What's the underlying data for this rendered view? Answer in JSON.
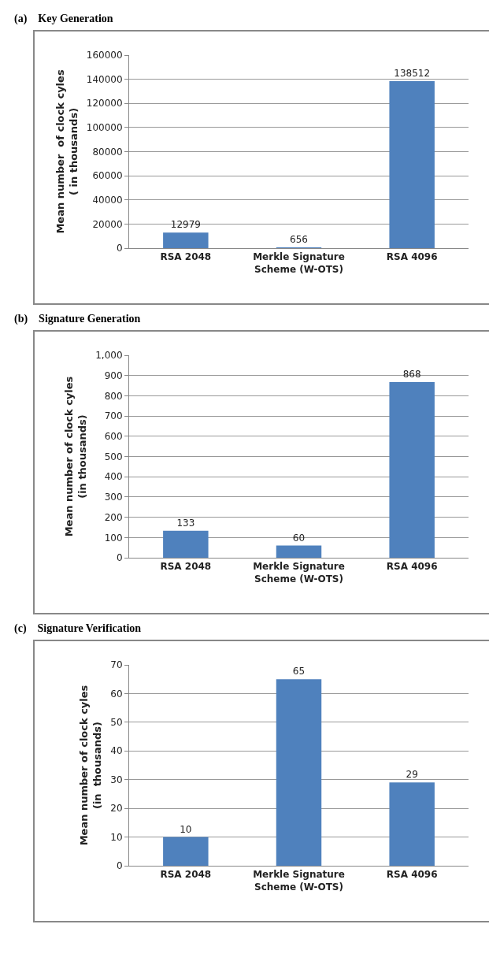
{
  "chart_data": [
    {
      "type": "bar",
      "title": "(a)    Key Generation",
      "ylabel": "Mean number  of clock cyles\n( in thousands)",
      "categories": [
        "RSA 2048",
        "Merkle Signature Scheme (W-OTS)",
        "RSA 4096"
      ],
      "values": [
        12979,
        656,
        138512
      ],
      "color": "#4f81bd",
      "ylim": [
        0,
        160000
      ],
      "yticks": [
        0,
        20000,
        40000,
        60000,
        80000,
        100000,
        120000,
        140000,
        160000
      ],
      "grid": "y",
      "data_labels": true
    },
    {
      "type": "bar",
      "title": "(b)    Signature Generation",
      "ylabel": "Mean number of clock cyles\n(in thousands)",
      "categories": [
        "RSA 2048",
        "Merkle Signature Scheme (W-OTS)",
        "RSA 4096"
      ],
      "values": [
        133,
        60,
        868
      ],
      "color": "#4f81bd",
      "ylim": [
        0,
        1000
      ],
      "yticks": [
        0,
        100,
        200,
        300,
        400,
        500,
        600,
        700,
        800,
        900,
        {
          "value": 1000,
          "label": "1,000"
        }
      ],
      "grid": "y",
      "data_labels": true
    },
    {
      "type": "bar",
      "title": "(c)    Signature Verification",
      "ylabel": "Mean number of clock cyles\n(in  thousands)",
      "categories": [
        "RSA 2048",
        "Merkle Signature Scheme (W-OTS)",
        "RSA 4096"
      ],
      "values": [
        10,
        65,
        29
      ],
      "color": "#4f81bd",
      "ylim": [
        0,
        70
      ],
      "yticks": [
        0,
        10,
        20,
        30,
        40,
        50,
        60,
        70
      ],
      "grid": "y",
      "data_labels": true
    }
  ]
}
